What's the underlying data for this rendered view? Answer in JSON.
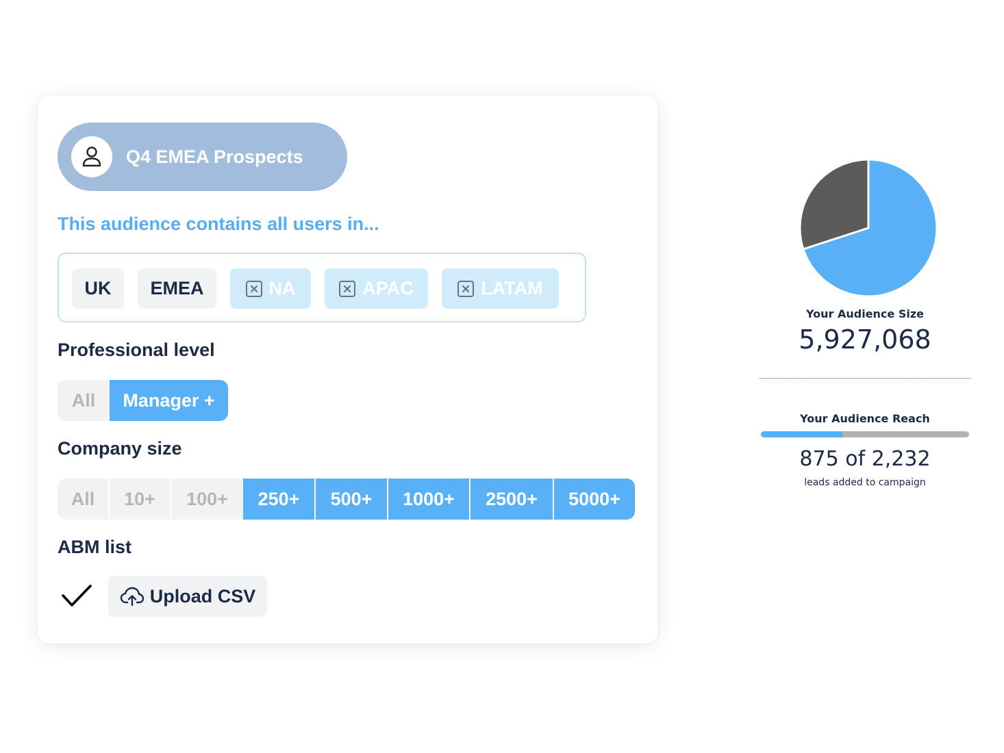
{
  "audience": {
    "name": "Q4 EMEA Prospects",
    "icon": "user-icon"
  },
  "regions": {
    "intro": "This audience contains all users in...",
    "chips": [
      {
        "label": "UK",
        "selected": true
      },
      {
        "label": "EMEA",
        "selected": true
      },
      {
        "label": "NA",
        "selected": false
      },
      {
        "label": "APAC",
        "selected": false
      },
      {
        "label": "LATAM",
        "selected": false
      }
    ]
  },
  "professional_level": {
    "label": "Professional level",
    "options": [
      {
        "label": "All",
        "active": false
      },
      {
        "label": "Manager +",
        "active": true
      }
    ]
  },
  "company_size": {
    "label": "Company size",
    "options": [
      {
        "label": "All",
        "active": false
      },
      {
        "label": "10+",
        "active": false
      },
      {
        "label": "100+",
        "active": false
      },
      {
        "label": "250+",
        "active": true
      },
      {
        "label": "500+",
        "active": true
      },
      {
        "label": "1000+",
        "active": true
      },
      {
        "label": "2500+",
        "active": true
      },
      {
        "label": "5000+",
        "active": true
      }
    ]
  },
  "abm": {
    "label": "ABM list",
    "checked": true,
    "upload_label": "Upload CSV"
  },
  "stats": {
    "size_label": "Your Audience Size",
    "size_value": "5,927,068",
    "reach_label": "Your Audience Reach",
    "reach_value": "875 of 2,232",
    "reach_sub": "leads added to campaign",
    "reach_fraction": 0.392
  },
  "colors": {
    "accent": "#58b0f6",
    "dark": "#5b5b5b",
    "pill": "#a2bcdb",
    "text": "#1b2a47"
  },
  "chart_data": {
    "type": "pie",
    "slices": [
      {
        "value": 70,
        "color": "#58b0f6"
      },
      {
        "value": 30,
        "color": "#5b5b5b"
      }
    ]
  }
}
